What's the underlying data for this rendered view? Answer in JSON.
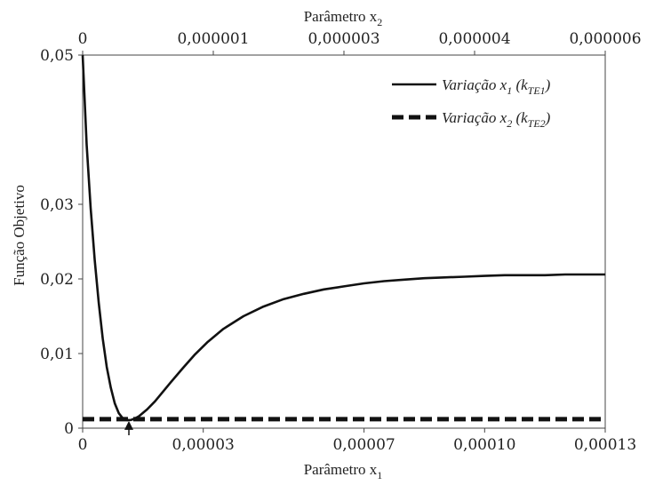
{
  "chart_data": {
    "type": "line",
    "xlabel": "Parâmetro x",
    "xlabel_sub": "1",
    "x2label": "Parâmetro x",
    "x2label_sub": "2",
    "ylabel": "Função Objetivo",
    "xlim": [
      0,
      0.00013
    ],
    "ylim": [
      0,
      0.05
    ],
    "x_ticks": [
      {
        "value": 0,
        "label": "0"
      },
      {
        "value": 3e-05,
        "label": "0,00003"
      },
      {
        "value": 7e-05,
        "label": "0,00007"
      },
      {
        "value": 0.0001,
        "label": "0,00010"
      },
      {
        "value": 0.00013,
        "label": "0,00013"
      }
    ],
    "x2lim": [
      0,
      6e-06
    ],
    "x2_ticks": [
      {
        "value": 0,
        "label": "0"
      },
      {
        "value": 1.5e-06,
        "label": "0,000001"
      },
      {
        "value": 3e-06,
        "label": "0,000003"
      },
      {
        "value": 4.5e-06,
        "label": "0,000004"
      },
      {
        "value": 6e-06,
        "label": "0,000006"
      }
    ],
    "y_ticks": [
      {
        "value": 0,
        "label": "0"
      },
      {
        "value": 0.01,
        "label": "0,01"
      },
      {
        "value": 0.02,
        "label": "0,02"
      },
      {
        "value": 0.03,
        "label": "0,03"
      },
      {
        "value": 0.05,
        "label": "0,05"
      }
    ],
    "legend_position": "top-right",
    "grid": false,
    "series": [
      {
        "name": "Variação x",
        "name_sub": "1",
        "name_suffix": "(k",
        "name_suffix_sub": "TE1",
        "name_close": ")",
        "axis": "x1",
        "style": "solid",
        "x": [
          0,
          1e-06,
          2e-06,
          3e-06,
          4e-06,
          5e-06,
          6e-06,
          7e-06,
          8e-06,
          9e-06,
          1e-05,
          1.1e-05,
          1.2e-05,
          1.3e-05,
          1.4e-05,
          1.6e-05,
          1.8e-05,
          2e-05,
          2.2e-05,
          2.5e-05,
          2.8e-05,
          3.1e-05,
          3.5e-05,
          4e-05,
          4.5e-05,
          5e-05,
          5.5e-05,
          6e-05,
          6.5e-05,
          7e-05,
          7.5e-05,
          8e-05,
          8.5e-05,
          9e-05,
          9.5e-05,
          0.0001,
          0.000105,
          0.00011,
          0.000115,
          0.00012,
          0.000125,
          0.00013
        ],
        "y": [
          0.05,
          0.038,
          0.0295,
          0.0225,
          0.0168,
          0.012,
          0.0082,
          0.0054,
          0.0033,
          0.002,
          0.0013,
          0.00108,
          0.0011,
          0.0013,
          0.0016,
          0.0025,
          0.0036,
          0.0049,
          0.0062,
          0.0081,
          0.0099,
          0.0115,
          0.0133,
          0.015,
          0.0163,
          0.0173,
          0.018,
          0.0186,
          0.019,
          0.0194,
          0.0197,
          0.0199,
          0.0201,
          0.0202,
          0.0203,
          0.0204,
          0.0205,
          0.0205,
          0.0205,
          0.0206,
          0.0206,
          0.0206
        ]
      },
      {
        "name": "Variação x",
        "name_sub": "2",
        "name_suffix": "(k",
        "name_suffix_sub": "TE2",
        "name_close": ")",
        "axis": "x2",
        "style": "dashed",
        "x": [
          0,
          6e-06
        ],
        "y": [
          0.0012,
          0.0012
        ]
      }
    ],
    "annotation": {
      "type": "arrow",
      "x": 1.15e-05,
      "y_from": 0,
      "y_to": 0.0012
    }
  }
}
